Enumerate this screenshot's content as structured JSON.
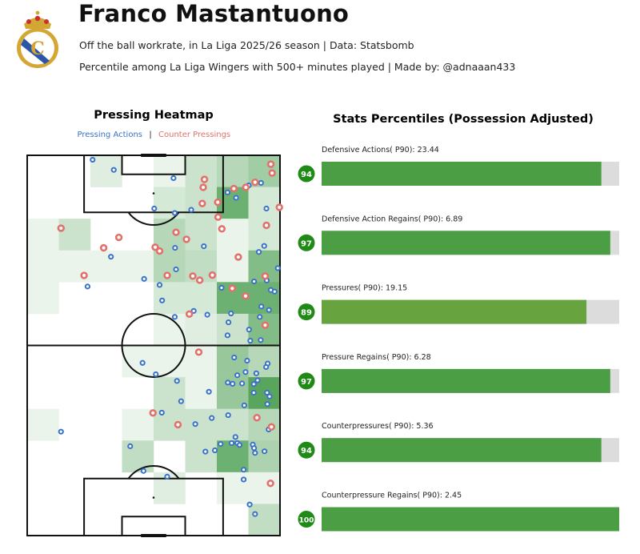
{
  "header": {
    "title": "Franco Mastantuono",
    "subtitle1": "Off the ball workrate, in La Liga 2025/26 season | Data: Statsbomb",
    "subtitle2": "Percentile among La Liga Wingers with 500+ minutes played | Made by: @adnaaan433",
    "logo_icon": "real-madrid-crest-icon"
  },
  "colors": {
    "pressing": "#3a72c9",
    "counter": "#e2716b",
    "bar": "#4c9e44",
    "bar_light": "#67a33f",
    "bar_bg": "#dcdcdc",
    "badge": "#1f8a16",
    "heat_max": "#2f8f36"
  },
  "chart_data": [
    {
      "type": "heatmap",
      "title": "Pressing Heatmap",
      "legend": {
        "pressing": "Pressing Actions",
        "separator": "|",
        "counter": "Counter Pressings",
        "placement": "top-center"
      },
      "pitch": {
        "width": 80,
        "length": 120,
        "orientation": "vertical"
      },
      "grid_cols": 8,
      "grid_rows": 12,
      "grid_intensity_top_to_bottom": [
        [
          0,
          0,
          0.15,
          0,
          0.1,
          0.25,
          0.35,
          0.45
        ],
        [
          0,
          0,
          0,
          0,
          0.2,
          0.25,
          0.7,
          0.2
        ],
        [
          0.1,
          0.25,
          0,
          0,
          0.35,
          0.25,
          0.1,
          0.2
        ],
        [
          0.1,
          0.1,
          0.1,
          0.1,
          0.35,
          0.3,
          0.1,
          0.6
        ],
        [
          0.1,
          0,
          0,
          0,
          0.2,
          0.2,
          0.7,
          0.7
        ],
        [
          0,
          0,
          0,
          0,
          0.1,
          0.15,
          0.25,
          0.6
        ],
        [
          0,
          0,
          0,
          0.1,
          0.1,
          0.1,
          0.5,
          0.35
        ],
        [
          0,
          0,
          0,
          0,
          0.25,
          0.1,
          0.5,
          0.8
        ],
        [
          0.1,
          0,
          0,
          0.1,
          0.25,
          0.25,
          0.25,
          0.35
        ],
        [
          0,
          0,
          0,
          0.3,
          0,
          0.25,
          0.7,
          0.4
        ],
        [
          0,
          0,
          0,
          0,
          0.15,
          0,
          0.1,
          0.1
        ],
        [
          0,
          0,
          0,
          0,
          0,
          0,
          0,
          0.3
        ]
      ],
      "pressing_actions": [
        [
          20.7,
          118.6
        ],
        [
          27.4,
          115.4
        ],
        [
          46.3,
          112.8
        ],
        [
          74,
          111.3
        ],
        [
          70.1,
          110.5
        ],
        [
          63.4,
          108.3
        ],
        [
          66.1,
          106.6
        ],
        [
          40.2,
          103.2
        ],
        [
          46.7,
          101.8
        ],
        [
          51.9,
          102.8
        ],
        [
          75.7,
          103.2
        ],
        [
          46.8,
          90.8
        ],
        [
          55.9,
          91.3
        ],
        [
          75,
          91.4
        ],
        [
          73.3,
          89.5
        ],
        [
          26.5,
          88
        ],
        [
          47.1,
          84
        ],
        [
          37,
          81
        ],
        [
          41.9,
          79.1
        ],
        [
          19.1,
          78.6
        ],
        [
          79.3,
          84.4
        ],
        [
          71.8,
          80.2
        ],
        [
          75.8,
          80.5
        ],
        [
          61.5,
          78.2
        ],
        [
          77.1,
          77.5
        ],
        [
          78.3,
          77
        ],
        [
          42.7,
          74.2
        ],
        [
          52.7,
          70.9
        ],
        [
          57,
          69.7
        ],
        [
          46.7,
          69
        ],
        [
          64.5,
          70.1
        ],
        [
          74.1,
          72.3
        ],
        [
          76.5,
          71.2
        ],
        [
          73.6,
          69
        ],
        [
          63.7,
          67.3
        ],
        [
          70.2,
          65
        ],
        [
          63.4,
          63.2
        ],
        [
          70.6,
          61.5
        ],
        [
          73.9,
          61.7
        ],
        [
          36.5,
          54.5
        ],
        [
          40.7,
          50.9
        ],
        [
          65.5,
          56.2
        ],
        [
          69.6,
          55.2
        ],
        [
          76.1,
          54.3
        ],
        [
          75.6,
          53.2
        ],
        [
          69.1,
          51.6
        ],
        [
          66.5,
          50.6
        ],
        [
          72.5,
          51.2
        ],
        [
          47.4,
          48.8
        ],
        [
          63.5,
          48.3
        ],
        [
          65,
          47.9
        ],
        [
          68,
          48
        ],
        [
          72.9,
          49
        ],
        [
          71.7,
          47.8
        ],
        [
          57.5,
          45.4
        ],
        [
          71.7,
          45.1
        ],
        [
          75.9,
          45.1
        ],
        [
          76.7,
          43.9
        ],
        [
          48.7,
          42.4
        ],
        [
          68.7,
          41.1
        ],
        [
          76,
          41.5
        ],
        [
          42.6,
          38.8
        ],
        [
          53.2,
          35.2
        ],
        [
          58.4,
          37.1
        ],
        [
          63.6,
          38
        ],
        [
          76.4,
          33.5
        ],
        [
          10.7,
          32.8
        ],
        [
          32.6,
          28.2
        ],
        [
          56.4,
          26.5
        ],
        [
          59.4,
          26.9
        ],
        [
          61.2,
          28.9
        ],
        [
          64.7,
          29.2
        ],
        [
          65.9,
          31.1
        ],
        [
          66.5,
          29.2
        ],
        [
          67.2,
          28.6
        ],
        [
          71.4,
          28.7
        ],
        [
          71.8,
          27.6
        ],
        [
          72.1,
          26.1
        ],
        [
          75.1,
          26.6
        ],
        [
          68.5,
          20.8
        ],
        [
          36.8,
          20.4
        ],
        [
          44.3,
          18.6
        ],
        [
          68.5,
          17.7
        ],
        [
          70.4,
          9.8
        ],
        [
          72.1,
          6.8
        ]
      ],
      "counter_pressings": [
        [
          77.1,
          117.2
        ],
        [
          77.5,
          114.4
        ],
        [
          56.1,
          112.4
        ],
        [
          55.7,
          109.9
        ],
        [
          65.4,
          109.5
        ],
        [
          69.2,
          109.9
        ],
        [
          72.1,
          111.5
        ],
        [
          55.4,
          104.8
        ],
        [
          60.3,
          105.2
        ],
        [
          79.8,
          103.6
        ],
        [
          60.4,
          100.5
        ],
        [
          75.7,
          97.9
        ],
        [
          61.6,
          96.8
        ],
        [
          10.7,
          97
        ],
        [
          29,
          94.1
        ],
        [
          47.1,
          95.7
        ],
        [
          50.4,
          93.5
        ],
        [
          24.2,
          90.8
        ],
        [
          40.5,
          91
        ],
        [
          41.9,
          89.8
        ],
        [
          66.8,
          87.9
        ],
        [
          18,
          82.1
        ],
        [
          44.3,
          82.1
        ],
        [
          52.4,
          81.9
        ],
        [
          54.6,
          80.6
        ],
        [
          58.6,
          82.2
        ],
        [
          75.3,
          81.9
        ],
        [
          64.9,
          78
        ],
        [
          69.1,
          75.6
        ],
        [
          51.3,
          69.9
        ],
        [
          75.3,
          66.4
        ],
        [
          54.3,
          57.9
        ],
        [
          39.8,
          38.7
        ],
        [
          47.7,
          35
        ],
        [
          72.7,
          37.2
        ],
        [
          77.3,
          34.3
        ],
        [
          77,
          16.5
        ]
      ]
    },
    {
      "type": "bar",
      "title": "Stats Percentiles (Possession Adjusted)",
      "xlim": [
        0,
        100
      ],
      "items": [
        {
          "label": "Defensive Actions( P90): 23.44",
          "percentile": 94,
          "badge": "94"
        },
        {
          "label": "Defensive Action Regains( P90): 6.89",
          "percentile": 97,
          "badge": "97"
        },
        {
          "label": "Pressures( P90): 19.15",
          "percentile": 89,
          "badge": "89"
        },
        {
          "label": "Pressure Regains( P90): 6.28",
          "percentile": 97,
          "badge": "97"
        },
        {
          "label": "Counterpressures( P90): 5.36",
          "percentile": 94,
          "badge": "94"
        },
        {
          "label": "Counterpressure Regains( P90): 2.45",
          "percentile": 100,
          "badge": "100"
        }
      ]
    }
  ]
}
